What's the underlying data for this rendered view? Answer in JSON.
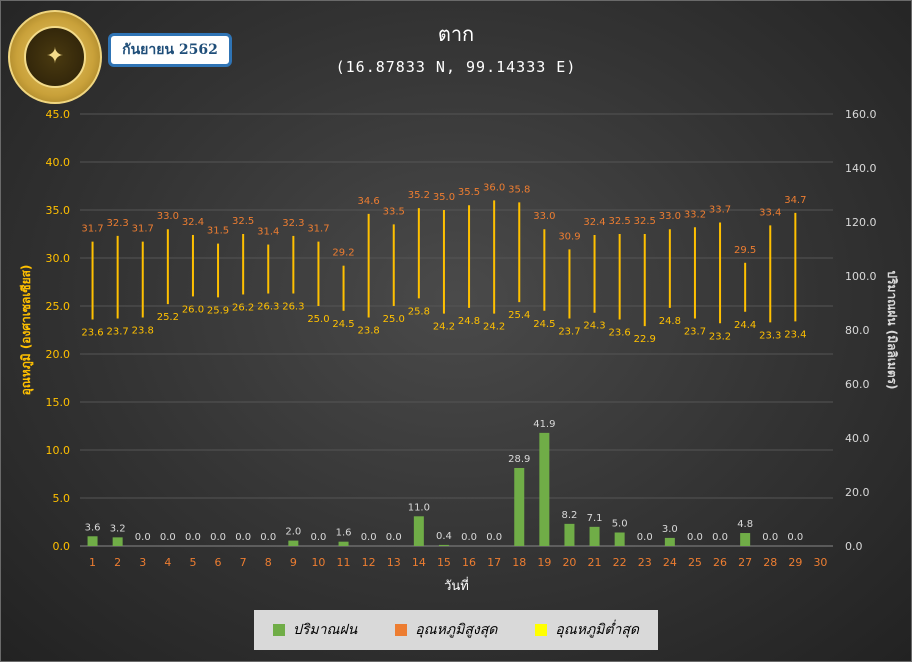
{
  "header": {
    "title": "ตาก",
    "coords": "(16.87833 N, 99.14333 E)",
    "month": "กันยายน 2562"
  },
  "legend": [
    {
      "label": "ปริมาณฝน",
      "color": "#70ad47"
    },
    {
      "label": "อุณหภูมิสูงสุด",
      "color": "#ed7d31"
    },
    {
      "label": "อุณหภูมิต่ำสุด",
      "color": "#ffff00"
    }
  ],
  "chart_data": {
    "type": "bar+range",
    "xlabel": "วันที่",
    "ylabel_left": "อุณหภูมิ (องศาเซลเซียส)",
    "ylabel_right": "ปริมาณฝน (มิลลิเมตร)",
    "ylim_left": [
      0,
      45
    ],
    "ylim_right": [
      0,
      160
    ],
    "left_ticks": [
      "0.0",
      "5.0",
      "10.0",
      "15.0",
      "20.0",
      "25.0",
      "30.0",
      "35.0",
      "40.0",
      "45.0"
    ],
    "right_ticks": [
      "0.0",
      "20.0",
      "40.0",
      "60.0",
      "80.0",
      "100.0",
      "120.0",
      "140.0",
      "160.0"
    ],
    "days": [
      1,
      2,
      3,
      4,
      5,
      6,
      7,
      8,
      9,
      10,
      11,
      12,
      13,
      14,
      15,
      16,
      17,
      18,
      19,
      20,
      21,
      22,
      23,
      24,
      25,
      26,
      27,
      28,
      29,
      30
    ],
    "rain": [
      3.6,
      3.2,
      0.0,
      0.0,
      0.0,
      0.0,
      0.0,
      0.0,
      2.0,
      0.0,
      1.6,
      0.0,
      0.0,
      11.0,
      0.4,
      0.0,
      0.0,
      28.9,
      41.9,
      8.2,
      7.1,
      5.0,
      0.0,
      3.0,
      0.0,
      0.0,
      4.8,
      0.0,
      0.0,
      null
    ],
    "tmax": [
      31.7,
      32.3,
      31.7,
      33.0,
      32.4,
      31.5,
      32.5,
      31.4,
      32.3,
      31.7,
      29.2,
      34.6,
      33.5,
      35.2,
      35.0,
      35.5,
      36.0,
      35.8,
      33.0,
      30.9,
      32.4,
      32.5,
      32.5,
      33.0,
      33.2,
      33.7,
      29.5,
      33.4,
      34.7,
      null
    ],
    "tmin": [
      23.6,
      23.7,
      23.8,
      25.2,
      26.0,
      25.9,
      26.2,
      26.3,
      26.3,
      25.0,
      24.5,
      23.8,
      25.0,
      25.8,
      24.2,
      24.8,
      24.2,
      25.4,
      24.5,
      23.7,
      24.3,
      23.6,
      22.9,
      24.8,
      23.7,
      23.2,
      24.4,
      23.3,
      23.4,
      null
    ],
    "colors": {
      "rain": "#70ad47",
      "tmax_label": "#ed7d31",
      "tmin_label": "#ffc000",
      "range_line": "#ffc000",
      "axis_text": "#ffc000",
      "right_axis_text": "#d9d9d9",
      "day_text": "#ed7d31"
    }
  }
}
